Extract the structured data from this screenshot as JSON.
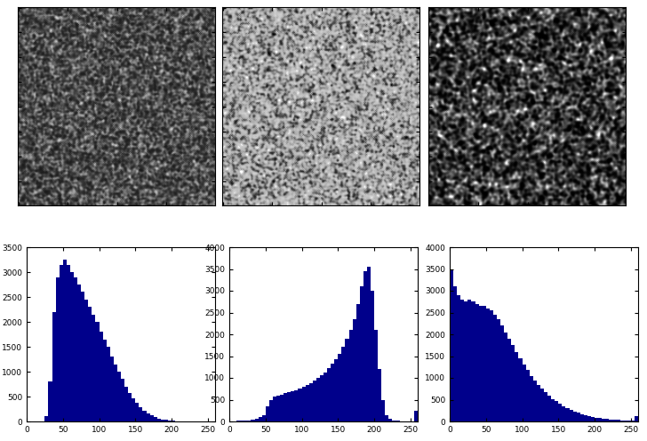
{
  "chart_data": [
    {
      "type": "histogram",
      "color": "#00008b",
      "bins": [
        0,
        5,
        10,
        15,
        20,
        25,
        30,
        35,
        40,
        45,
        50,
        55,
        60,
        65,
        70,
        75,
        80,
        85,
        90,
        95,
        100,
        105,
        110,
        115,
        120,
        125,
        130,
        135,
        140,
        145,
        150,
        155,
        160,
        165,
        170,
        175,
        180,
        185,
        190,
        195,
        200,
        205,
        210,
        215,
        220,
        225,
        230,
        235,
        240,
        245,
        250,
        255,
        260
      ],
      "counts": [
        0,
        0,
        0,
        0,
        0,
        100,
        800,
        2200,
        2900,
        3150,
        3250,
        3150,
        3000,
        2900,
        2750,
        2600,
        2450,
        2300,
        2150,
        2000,
        1800,
        1650,
        1500,
        1300,
        1150,
        1000,
        850,
        700,
        580,
        470,
        380,
        290,
        220,
        160,
        120,
        85,
        60,
        40,
        28,
        18,
        12,
        8,
        5,
        3,
        2,
        1,
        1,
        0,
        0,
        0,
        0,
        0
      ],
      "xlim": [
        0,
        260
      ],
      "xticks": [
        0,
        50,
        100,
        150,
        200,
        250
      ],
      "ylim": [
        0,
        3500
      ],
      "yticks": [
        0,
        500,
        1000,
        1500,
        2000,
        2500,
        3000,
        3500
      ]
    },
    {
      "type": "histogram",
      "color": "#00008b",
      "bins": [
        0,
        5,
        10,
        15,
        20,
        25,
        30,
        35,
        40,
        45,
        50,
        55,
        60,
        65,
        70,
        75,
        80,
        85,
        90,
        95,
        100,
        105,
        110,
        115,
        120,
        125,
        130,
        135,
        140,
        145,
        150,
        155,
        160,
        165,
        170,
        175,
        180,
        185,
        190,
        195,
        200,
        205,
        210,
        215,
        220,
        225,
        230,
        235,
        240,
        245,
        250,
        255,
        260
      ],
      "counts": [
        10,
        10,
        15,
        20,
        25,
        30,
        40,
        60,
        100,
        150,
        350,
        500,
        580,
        600,
        620,
        650,
        680,
        700,
        720,
        750,
        790,
        830,
        880,
        940,
        1000,
        1060,
        1130,
        1220,
        1320,
        1430,
        1560,
        1720,
        1900,
        2100,
        2350,
        2700,
        3100,
        3450,
        3550,
        3000,
        2100,
        1200,
        500,
        150,
        60,
        25,
        15,
        10,
        8,
        8,
        10,
        250
      ],
      "xlim": [
        0,
        260
      ],
      "xticks": [
        0,
        50,
        100,
        150,
        200,
        250
      ],
      "ylim": [
        0,
        4000
      ],
      "yticks": [
        0,
        500,
        1000,
        1500,
        2000,
        2500,
        3000,
        3500,
        4000
      ]
    },
    {
      "type": "histogram",
      "color": "#00008b",
      "bins": [
        0,
        5,
        10,
        15,
        20,
        25,
        30,
        35,
        40,
        45,
        50,
        55,
        60,
        65,
        70,
        75,
        80,
        85,
        90,
        95,
        100,
        105,
        110,
        115,
        120,
        125,
        130,
        135,
        140,
        145,
        150,
        155,
        160,
        165,
        170,
        175,
        180,
        185,
        190,
        195,
        200,
        205,
        210,
        215,
        220,
        225,
        230,
        235,
        240,
        245,
        250,
        255,
        260
      ],
      "counts": [
        3500,
        3100,
        2900,
        2800,
        2750,
        2800,
        2750,
        2700,
        2650,
        2650,
        2600,
        2550,
        2450,
        2350,
        2200,
        2050,
        1900,
        1750,
        1600,
        1450,
        1300,
        1180,
        1050,
        940,
        840,
        750,
        670,
        590,
        520,
        460,
        400,
        350,
        300,
        260,
        225,
        195,
        170,
        145,
        125,
        105,
        90,
        75,
        62,
        52,
        44,
        37,
        31,
        26,
        22,
        18,
        15,
        120
      ],
      "xlim": [
        0,
        260
      ],
      "xticks": [
        0,
        50,
        100,
        150,
        200,
        250
      ],
      "ylim": [
        0,
        4000
      ],
      "yticks": [
        0,
        500,
        1000,
        1500,
        2000,
        2500,
        3000,
        3500,
        4000
      ]
    }
  ]
}
